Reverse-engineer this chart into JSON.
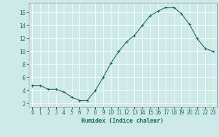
{
  "x": [
    0,
    1,
    2,
    3,
    4,
    5,
    6,
    7,
    8,
    9,
    10,
    11,
    12,
    13,
    14,
    15,
    16,
    17,
    18,
    19,
    20,
    21,
    22,
    23
  ],
  "y": [
    4.8,
    4.8,
    4.2,
    4.2,
    3.8,
    3.0,
    2.5,
    2.5,
    4.0,
    6.0,
    8.2,
    10.0,
    11.5,
    12.5,
    14.0,
    15.5,
    16.2,
    16.8,
    16.8,
    15.8,
    14.2,
    12.0,
    10.5,
    10.0
  ],
  "xlabel": "Humidex (Indice chaleur)",
  "xlim": [
    -0.5,
    23.5
  ],
  "ylim": [
    1.5,
    17.5
  ],
  "yticks": [
    2,
    4,
    6,
    8,
    10,
    12,
    14,
    16
  ],
  "xticks": [
    0,
    1,
    2,
    3,
    4,
    5,
    6,
    7,
    8,
    9,
    10,
    11,
    12,
    13,
    14,
    15,
    16,
    17,
    18,
    19,
    20,
    21,
    22,
    23
  ],
  "line_color": "#1a6b5a",
  "marker_color": "#1a6b5a",
  "bg_color": "#ceeae8",
  "grid_color": "#ffffff",
  "border_color": "#888888",
  "label_fontsize": 6,
  "tick_fontsize": 5.5
}
